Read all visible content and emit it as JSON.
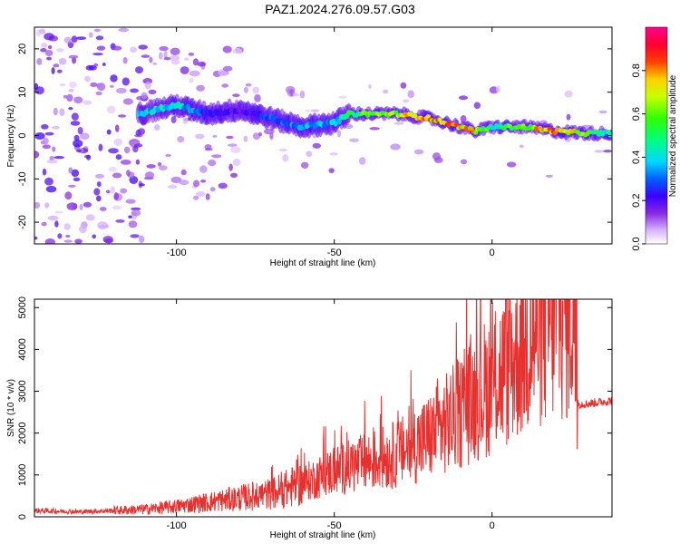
{
  "title": "PAZ1.2024.276.09.57.G03",
  "chart_data": [
    {
      "type": "heatmap",
      "xlabel": "Height of straight line (km)",
      "ylabel": "Frequency (Hz)",
      "xlim": [
        -145,
        38
      ],
      "ylim": [
        -25,
        25
      ],
      "x_ticks": [
        -100,
        -50,
        0
      ],
      "y_ticks": [
        -20,
        -10,
        0,
        10,
        20
      ],
      "colorbar": {
        "label": "Normalized spectral amplitude",
        "range": [
          0,
          1
        ],
        "ticks": [
          "0.0",
          "0.2",
          "0.4",
          "0.6",
          "0.8"
        ],
        "colormap": "rainbow (white-violet-blue-cyan-green-yellow-red-magenta)"
      },
      "ridge": {
        "x": [
          -112,
          -100,
          -90,
          -80,
          -70,
          -60,
          -50,
          -45,
          -40,
          -30,
          -20,
          -10,
          -5,
          0,
          10,
          20,
          30,
          38
        ],
        "frequency": [
          5,
          7,
          5,
          6,
          4,
          2,
          3,
          5,
          5,
          5,
          4,
          2,
          1,
          2,
          2,
          1,
          0.5,
          0.5
        ],
        "amplitude": [
          0.4,
          0.45,
          0.25,
          0.2,
          0.3,
          0.35,
          0.4,
          0.55,
          0.6,
          0.7,
          0.85,
          0.8,
          0.75,
          0.5,
          0.65,
          0.9,
          0.6,
          0.45
        ]
      }
    },
    {
      "type": "line",
      "xlabel": "Height of straight line (km)",
      "ylabel": "SNR (10 * v/v)",
      "xlim": [
        -145,
        38
      ],
      "ylim": [
        0,
        5200
      ],
      "x_ticks": [
        -100,
        -50,
        0
      ],
      "y_ticks": [
        0,
        1000,
        2000,
        3000,
        4000,
        5000
      ],
      "series": [
        {
          "color": "#e8312f",
          "x": [
            -145,
            -130,
            -120,
            -110,
            -100,
            -90,
            -80,
            -70,
            -60,
            -50,
            -40,
            -30,
            -20,
            -10,
            -5,
            0,
            5,
            10,
            15,
            20,
            26,
            27,
            30,
            38
          ],
          "values": [
            150,
            120,
            150,
            180,
            250,
            350,
            450,
            550,
            800,
            1100,
            1300,
            1500,
            1900,
            2500,
            2900,
            3200,
            3600,
            4100,
            4500,
            4800,
            4900,
            2700,
            2700,
            2780
          ]
        }
      ]
    }
  ]
}
